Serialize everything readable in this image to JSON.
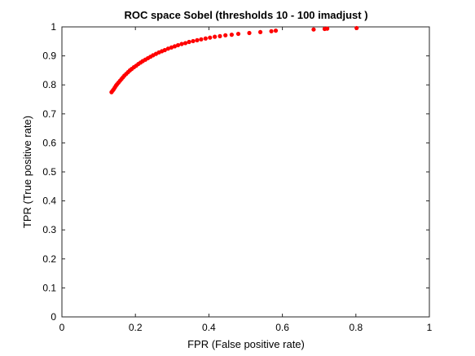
{
  "chart_data": {
    "type": "scatter",
    "title": "ROC space Sobel (thresholds 10 - 100  imadjust )",
    "xlabel": "FPR (False positive rate)",
    "ylabel": "TPR (True positive rate)",
    "xlim": [
      0,
      1
    ],
    "ylim": [
      0,
      1
    ],
    "x_ticks": [
      "0",
      "0.2",
      "0.4",
      "0.6",
      "0.8",
      "1"
    ],
    "y_ticks": [
      "0",
      "0.1",
      "0.2",
      "0.3",
      "0.4",
      "0.5",
      "0.6",
      "0.7",
      "0.8",
      "0.9",
      "1"
    ],
    "grid": false,
    "marker_color": "#ff0000",
    "series": [
      {
        "x": [
          0.135,
          0.138,
          0.141,
          0.144,
          0.147,
          0.15,
          0.154,
          0.158,
          0.162,
          0.166,
          0.17,
          0.175,
          0.18,
          0.185,
          0.19,
          0.196,
          0.202,
          0.208,
          0.214,
          0.22,
          0.227,
          0.234,
          0.241,
          0.248,
          0.256,
          0.264,
          0.272,
          0.28,
          0.289,
          0.298,
          0.307,
          0.316,
          0.326,
          0.336,
          0.346,
          0.357,
          0.368,
          0.379,
          0.391,
          0.403,
          0.416,
          0.43,
          0.445,
          0.462,
          0.48,
          0.51,
          0.54,
          0.57,
          0.582,
          0.685,
          0.715,
          0.722,
          0.802
        ],
        "y": [
          0.775,
          0.78,
          0.785,
          0.791,
          0.797,
          0.802,
          0.808,
          0.814,
          0.82,
          0.826,
          0.832,
          0.838,
          0.844,
          0.85,
          0.855,
          0.861,
          0.866,
          0.872,
          0.877,
          0.882,
          0.887,
          0.892,
          0.897,
          0.902,
          0.907,
          0.912,
          0.916,
          0.92,
          0.925,
          0.929,
          0.933,
          0.937,
          0.941,
          0.944,
          0.948,
          0.951,
          0.954,
          0.957,
          0.96,
          0.963,
          0.966,
          0.968,
          0.971,
          0.973,
          0.976,
          0.979,
          0.982,
          0.985,
          0.987,
          0.991,
          0.993,
          0.994,
          0.996
        ]
      }
    ]
  }
}
